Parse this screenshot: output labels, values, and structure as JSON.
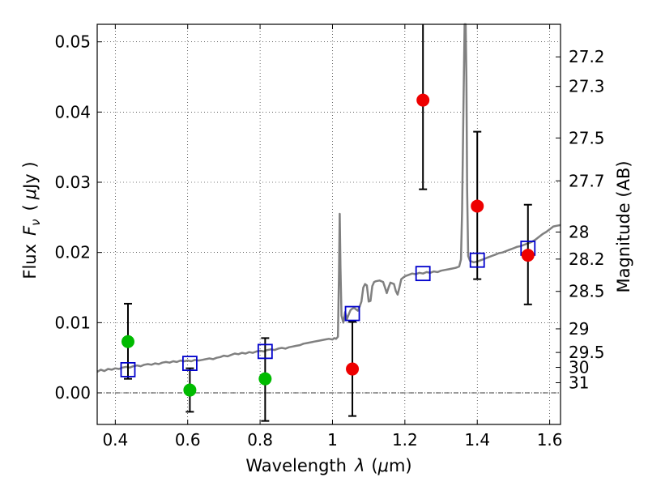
{
  "chart_data": {
    "type": "scatter",
    "xlabel_parts": {
      "text": "Wavelength",
      "symbol": "λ",
      "unit_open": "(",
      "unit_mu": "μ",
      "unit_rest": "m)"
    },
    "ylabel_parts": {
      "text": "Flux",
      "symbol": "F",
      "subscript": "ν",
      "unit_open": "(",
      "unit_mu": "μ",
      "unit_rest": "Jy )"
    },
    "y2label": "Magnitude (AB)",
    "xlim": [
      0.35,
      1.63
    ],
    "ylim": [
      -0.0045,
      0.0525
    ],
    "grid": true,
    "x_ticks": [
      {
        "value": 0.4,
        "label": "0.4"
      },
      {
        "value": 0.6,
        "label": "0.6"
      },
      {
        "value": 0.8,
        "label": "0.8"
      },
      {
        "value": 1.0,
        "label": "1"
      },
      {
        "value": 1.2,
        "label": "1.2"
      },
      {
        "value": 1.4,
        "label": "1.4"
      },
      {
        "value": 1.6,
        "label": "1.6"
      }
    ],
    "y_ticks": [
      {
        "value": 0.0,
        "label": "0.00"
      },
      {
        "value": 0.01,
        "label": "0.01"
      },
      {
        "value": 0.02,
        "label": "0.02"
      },
      {
        "value": 0.03,
        "label": "0.03"
      },
      {
        "value": 0.04,
        "label": "0.04"
      },
      {
        "value": 0.05,
        "label": "0.05"
      }
    ],
    "mag_ticks": [
      {
        "mag": 27.2,
        "label": "27.2"
      },
      {
        "mag": 27.3,
        "label": "27.3"
      },
      {
        "mag": 27.5,
        "label": "27.5"
      },
      {
        "mag": 27.7,
        "label": "27.7"
      },
      {
        "mag": 28.0,
        "label": "28"
      },
      {
        "mag": 28.2,
        "label": "28.2"
      },
      {
        "mag": 28.5,
        "label": "28.5"
      },
      {
        "mag": 29.0,
        "label": "29"
      },
      {
        "mag": 29.5,
        "label": "29.5"
      },
      {
        "mag": 30.0,
        "label": "30"
      },
      {
        "mag": 31.0,
        "label": "31"
      }
    ],
    "zero_line": 0.0,
    "series": [
      {
        "kind": "model_spectrum",
        "color": "#808080",
        "points": [
          [
            0.35,
            0.003
          ],
          [
            0.36,
            0.0033
          ],
          [
            0.37,
            0.0031
          ],
          [
            0.38,
            0.0034
          ],
          [
            0.39,
            0.0033
          ],
          [
            0.4,
            0.0035
          ],
          [
            0.41,
            0.0034
          ],
          [
            0.42,
            0.0036
          ],
          [
            0.43,
            0.0037
          ],
          [
            0.44,
            0.0036
          ],
          [
            0.45,
            0.0038
          ],
          [
            0.46,
            0.0039
          ],
          [
            0.47,
            0.0038
          ],
          [
            0.48,
            0.004
          ],
          [
            0.49,
            0.0041
          ],
          [
            0.5,
            0.004
          ],
          [
            0.51,
            0.0042
          ],
          [
            0.52,
            0.0041
          ],
          [
            0.53,
            0.0043
          ],
          [
            0.54,
            0.0044
          ],
          [
            0.55,
            0.0043
          ],
          [
            0.56,
            0.0045
          ],
          [
            0.57,
            0.0044
          ],
          [
            0.58,
            0.0046
          ],
          [
            0.59,
            0.0045
          ],
          [
            0.6,
            0.0046
          ],
          [
            0.61,
            0.0045
          ],
          [
            0.62,
            0.0047
          ],
          [
            0.63,
            0.0046
          ],
          [
            0.64,
            0.0047
          ],
          [
            0.65,
            0.0048
          ],
          [
            0.66,
            0.0049
          ],
          [
            0.67,
            0.0048
          ],
          [
            0.68,
            0.005
          ],
          [
            0.69,
            0.0051
          ],
          [
            0.7,
            0.0053
          ],
          [
            0.71,
            0.0052
          ],
          [
            0.72,
            0.0054
          ],
          [
            0.73,
            0.0056
          ],
          [
            0.74,
            0.0055
          ],
          [
            0.75,
            0.0057
          ],
          [
            0.76,
            0.0056
          ],
          [
            0.77,
            0.0058
          ],
          [
            0.78,
            0.0057
          ],
          [
            0.79,
            0.0059
          ],
          [
            0.8,
            0.006
          ],
          [
            0.81,
            0.0059
          ],
          [
            0.82,
            0.0061
          ],
          [
            0.83,
            0.0062
          ],
          [
            0.84,
            0.0061
          ],
          [
            0.85,
            0.0063
          ],
          [
            0.86,
            0.0064
          ],
          [
            0.87,
            0.0063
          ],
          [
            0.88,
            0.0065
          ],
          [
            0.89,
            0.0066
          ],
          [
            0.9,
            0.0067
          ],
          [
            0.91,
            0.0068
          ],
          [
            0.92,
            0.007
          ],
          [
            0.93,
            0.0071
          ],
          [
            0.94,
            0.0072
          ],
          [
            0.95,
            0.0073
          ],
          [
            0.96,
            0.0074
          ],
          [
            0.97,
            0.0075
          ],
          [
            0.98,
            0.0076
          ],
          [
            0.99,
            0.0077
          ],
          [
            1.0,
            0.0076
          ],
          [
            1.005,
            0.0078
          ],
          [
            1.01,
            0.0077
          ],
          [
            1.015,
            0.008
          ],
          [
            1.018,
            0.017
          ],
          [
            1.02,
            0.0255
          ],
          [
            1.022,
            0.018
          ],
          [
            1.025,
            0.011
          ],
          [
            1.03,
            0.01
          ],
          [
            1.035,
            0.0115
          ],
          [
            1.04,
            0.0105
          ],
          [
            1.045,
            0.0112
          ],
          [
            1.05,
            0.0118
          ],
          [
            1.055,
            0.012
          ],
          [
            1.06,
            0.0121
          ],
          [
            1.065,
            0.0119
          ],
          [
            1.07,
            0.0117
          ],
          [
            1.075,
            0.0123
          ],
          [
            1.08,
            0.013
          ],
          [
            1.085,
            0.015
          ],
          [
            1.09,
            0.0155
          ],
          [
            1.095,
            0.0153
          ],
          [
            1.1,
            0.013
          ],
          [
            1.105,
            0.0131
          ],
          [
            1.11,
            0.0152
          ],
          [
            1.115,
            0.0158
          ],
          [
            1.12,
            0.0159
          ],
          [
            1.13,
            0.016
          ],
          [
            1.14,
            0.0158
          ],
          [
            1.145,
            0.015
          ],
          [
            1.15,
            0.0142
          ],
          [
            1.155,
            0.015
          ],
          [
            1.16,
            0.0157
          ],
          [
            1.17,
            0.0155
          ],
          [
            1.175,
            0.0145
          ],
          [
            1.18,
            0.014
          ],
          [
            1.185,
            0.015
          ],
          [
            1.19,
            0.0162
          ],
          [
            1.2,
            0.0166
          ],
          [
            1.21,
            0.0168
          ],
          [
            1.22,
            0.017
          ],
          [
            1.23,
            0.0169
          ],
          [
            1.24,
            0.0171
          ],
          [
            1.25,
            0.017
          ],
          [
            1.26,
            0.0172
          ],
          [
            1.27,
            0.0171
          ],
          [
            1.28,
            0.0173
          ],
          [
            1.29,
            0.0172
          ],
          [
            1.3,
            0.0174
          ],
          [
            1.31,
            0.0175
          ],
          [
            1.32,
            0.0176
          ],
          [
            1.33,
            0.0177
          ],
          [
            1.34,
            0.0178
          ],
          [
            1.345,
            0.0179
          ],
          [
            1.35,
            0.018
          ],
          [
            1.355,
            0.019
          ],
          [
            1.358,
            0.026
          ],
          [
            1.362,
            0.041
          ],
          [
            1.365,
            0.054
          ],
          [
            1.368,
            0.054
          ],
          [
            1.37,
            0.045
          ],
          [
            1.372,
            0.029
          ],
          [
            1.375,
            0.0195
          ],
          [
            1.38,
            0.0188
          ],
          [
            1.39,
            0.0186
          ],
          [
            1.4,
            0.0187
          ],
          [
            1.41,
            0.0189
          ],
          [
            1.42,
            0.0191
          ],
          [
            1.43,
            0.0193
          ],
          [
            1.44,
            0.0195
          ],
          [
            1.45,
            0.0197
          ],
          [
            1.46,
            0.0199
          ],
          [
            1.47,
            0.02
          ],
          [
            1.48,
            0.0202
          ],
          [
            1.49,
            0.0204
          ],
          [
            1.5,
            0.0206
          ],
          [
            1.51,
            0.0208
          ],
          [
            1.52,
            0.0209
          ],
          [
            1.53,
            0.0211
          ],
          [
            1.54,
            0.0213
          ],
          [
            1.55,
            0.0215
          ],
          [
            1.56,
            0.0218
          ],
          [
            1.57,
            0.0222
          ],
          [
            1.58,
            0.0226
          ],
          [
            1.59,
            0.0229
          ],
          [
            1.6,
            0.0233
          ],
          [
            1.61,
            0.0237
          ],
          [
            1.62,
            0.0238
          ],
          [
            1.63,
            0.0239
          ]
        ]
      },
      {
        "kind": "model_photometry",
        "marker": "open-square",
        "color": "#0000cc",
        "points": [
          {
            "x": 0.435,
            "y": 0.0033
          },
          {
            "x": 0.606,
            "y": 0.0042
          },
          {
            "x": 0.814,
            "y": 0.0059
          },
          {
            "x": 1.055,
            "y": 0.0113
          },
          {
            "x": 1.25,
            "y": 0.017
          },
          {
            "x": 1.4,
            "y": 0.0189
          },
          {
            "x": 1.54,
            "y": 0.0206
          }
        ]
      },
      {
        "kind": "observed_optical",
        "marker": "filled-circle",
        "color": "#00bb00",
        "points": [
          {
            "x": 0.435,
            "y": 0.0073,
            "ylow": 0.002,
            "yhigh": 0.0127
          },
          {
            "x": 0.606,
            "y": 0.0004,
            "ylow": -0.0027,
            "yhigh": 0.0035
          },
          {
            "x": 0.814,
            "y": 0.002,
            "ylow": -0.004,
            "yhigh": 0.0078
          }
        ]
      },
      {
        "kind": "observed_nir",
        "marker": "filled-circle",
        "color": "#ee0000",
        "points": [
          {
            "x": 1.055,
            "y": 0.0034,
            "ylow": -0.0033,
            "yhigh": 0.0101
          },
          {
            "x": 1.25,
            "y": 0.0417,
            "ylow": 0.029,
            "yhigh": 0.053
          },
          {
            "x": 1.4,
            "y": 0.0266,
            "ylow": 0.0162,
            "yhigh": 0.0372
          },
          {
            "x": 1.54,
            "y": 0.0196,
            "ylow": 0.0126,
            "yhigh": 0.0268
          }
        ]
      }
    ]
  }
}
